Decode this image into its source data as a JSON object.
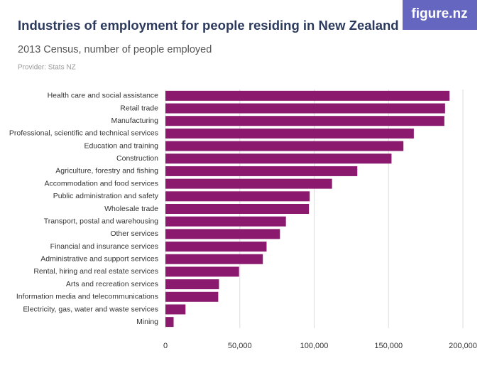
{
  "brand": "figure.nz",
  "chart_data": {
    "type": "hbar",
    "title": "Industries of employment for people residing in New Zealand",
    "subtitle": "2013 Census, number of people employed",
    "source": "Provider: Stats NZ",
    "categories": [
      "Health care and social assistance",
      "Retail trade",
      "Manufacturing",
      "Professional, scientific and technical services",
      "Education and training",
      "Construction",
      "Agriculture, forestry and fishing",
      "Accommodation and food services",
      "Public administration and safety",
      "Wholesale trade",
      "Transport, postal and warehousing",
      "Other services",
      "Financial and insurance services",
      "Administrative and support services",
      "Rental, hiring and real estate services",
      "Arts and recreation services",
      "Information media and telecommunications",
      "Electricity, gas, water and waste services",
      "Mining"
    ],
    "values": [
      191000,
      188000,
      187500,
      167000,
      160000,
      152000,
      129000,
      112000,
      97000,
      96500,
      81000,
      77000,
      68000,
      65500,
      49500,
      36000,
      35500,
      13500,
      5500
    ],
    "color": "#8b1a6f",
    "xlim": [
      0,
      200000
    ],
    "xticks": [
      0,
      {
        "value": 50000,
        "label": "50,000"
      },
      {
        "value": 100000,
        "label": "100,000"
      },
      {
        "value": 150000,
        "label": "150,000"
      },
      {
        "value": 200000,
        "label": "200,000"
      }
    ],
    "grid": true
  }
}
